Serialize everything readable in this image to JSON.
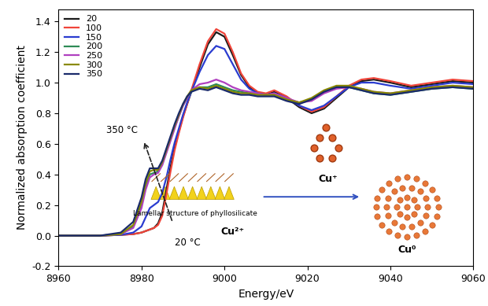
{
  "chart_data": {
    "type": "line",
    "x_label": "Energy/eV",
    "y_label": "Normalized absorption coefficient",
    "x": [
      8960,
      8970,
      8975,
      8978,
      8980,
      8981,
      8982,
      8983,
      8984,
      8985,
      8986,
      8987,
      8988,
      8989,
      8990,
      8991,
      8992,
      8994,
      8996,
      8998,
      9000,
      9002,
      9004,
      9006,
      9008,
      9010,
      9012,
      9015,
      9018,
      9021,
      9024,
      9027,
      9030,
      9033,
      9036,
      9040,
      9045,
      9050,
      9055,
      9060
    ],
    "series": [
      {
        "name": "20",
        "color": "#1a1a1a",
        "values": [
          0,
          0,
          0.005,
          0.01,
          0.02,
          0.03,
          0.04,
          0.05,
          0.08,
          0.15,
          0.3,
          0.45,
          0.58,
          0.68,
          0.78,
          0.86,
          0.94,
          1.1,
          1.25,
          1.33,
          1.3,
          1.18,
          1.05,
          0.97,
          0.93,
          0.92,
          0.94,
          0.9,
          0.84,
          0.8,
          0.83,
          0.9,
          0.97,
          1.01,
          1.02,
          1.0,
          0.97,
          0.99,
          1.01,
          1.0
        ]
      },
      {
        "name": "100",
        "color": "#f0453a",
        "values": [
          0,
          0,
          0.005,
          0.01,
          0.02,
          0.03,
          0.04,
          0.05,
          0.07,
          0.13,
          0.27,
          0.42,
          0.56,
          0.67,
          0.77,
          0.86,
          0.95,
          1.12,
          1.27,
          1.35,
          1.32,
          1.2,
          1.06,
          0.98,
          0.94,
          0.93,
          0.95,
          0.91,
          0.85,
          0.81,
          0.84,
          0.91,
          0.98,
          1.02,
          1.03,
          1.01,
          0.98,
          1.0,
          1.02,
          1.01
        ]
      },
      {
        "name": "150",
        "color": "#2a3cd0",
        "values": [
          0,
          0,
          0.005,
          0.02,
          0.06,
          0.12,
          0.18,
          0.2,
          0.22,
          0.28,
          0.38,
          0.5,
          0.61,
          0.7,
          0.79,
          0.87,
          0.94,
          1.07,
          1.18,
          1.24,
          1.22,
          1.12,
          1.02,
          0.96,
          0.93,
          0.92,
          0.93,
          0.9,
          0.85,
          0.82,
          0.85,
          0.91,
          0.97,
          1.0,
          1.0,
          0.98,
          0.96,
          0.98,
          1.0,
          0.99
        ]
      },
      {
        "name": "200",
        "color": "#2e8b57",
        "values": [
          0,
          0,
          0.01,
          0.06,
          0.2,
          0.32,
          0.4,
          0.41,
          0.42,
          0.47,
          0.55,
          0.63,
          0.71,
          0.78,
          0.85,
          0.9,
          0.94,
          0.97,
          0.97,
          0.99,
          0.97,
          0.95,
          0.94,
          0.93,
          0.92,
          0.92,
          0.92,
          0.89,
          0.87,
          0.89,
          0.94,
          0.97,
          0.97,
          0.95,
          0.93,
          0.92,
          0.94,
          0.96,
          0.97,
          0.96
        ]
      },
      {
        "name": "250",
        "color": "#b040c0",
        "values": [
          0,
          0,
          0.01,
          0.05,
          0.18,
          0.3,
          0.38,
          0.4,
          0.41,
          0.46,
          0.54,
          0.62,
          0.7,
          0.78,
          0.85,
          0.9,
          0.95,
          0.99,
          1.0,
          1.02,
          1.0,
          0.97,
          0.95,
          0.94,
          0.93,
          0.92,
          0.93,
          0.9,
          0.87,
          0.88,
          0.93,
          0.96,
          0.97,
          0.96,
          0.94,
          0.93,
          0.95,
          0.97,
          0.98,
          0.97
        ]
      },
      {
        "name": "300",
        "color": "#8a8a00",
        "values": [
          0,
          0,
          0.01,
          0.07,
          0.22,
          0.34,
          0.42,
          0.43,
          0.43,
          0.48,
          0.56,
          0.64,
          0.72,
          0.79,
          0.86,
          0.91,
          0.95,
          0.97,
          0.96,
          0.98,
          0.96,
          0.94,
          0.93,
          0.93,
          0.92,
          0.92,
          0.92,
          0.89,
          0.87,
          0.9,
          0.95,
          0.98,
          0.98,
          0.96,
          0.94,
          0.93,
          0.95,
          0.97,
          0.98,
          0.97
        ]
      },
      {
        "name": "350",
        "color": "#1a2a6a",
        "values": [
          0,
          0,
          0.02,
          0.09,
          0.25,
          0.37,
          0.44,
          0.44,
          0.44,
          0.49,
          0.57,
          0.65,
          0.73,
          0.8,
          0.86,
          0.91,
          0.94,
          0.96,
          0.95,
          0.97,
          0.95,
          0.93,
          0.92,
          0.92,
          0.91,
          0.91,
          0.91,
          0.88,
          0.86,
          0.89,
          0.94,
          0.97,
          0.97,
          0.95,
          0.93,
          0.92,
          0.94,
          0.96,
          0.97,
          0.96
        ]
      }
    ],
    "xlim": [
      8960,
      9060
    ],
    "xticks": [
      8960,
      8980,
      9000,
      9020,
      9040,
      9060
    ],
    "ylim": [
      -0.2,
      1.48
    ],
    "yticks": [
      {
        "value": -0.2,
        "label": "-0.2"
      },
      {
        "value": 0.0,
        "label": "0.0"
      },
      {
        "value": 0.2,
        "label": "0.2"
      },
      {
        "value": 0.4,
        "label": "0.4"
      },
      {
        "value": 0.6,
        "label": "0.6"
      },
      {
        "value": 0.8,
        "label": "0.8"
      },
      {
        "value": 1.0,
        "label": "1.0"
      },
      {
        "value": 1.2,
        "label": "1.2"
      },
      {
        "value": 1.4,
        "label": "1.4"
      }
    ],
    "legend": "upper left",
    "annotations": {
      "high_temp": "350 °C",
      "low_temp": "20 °C",
      "structure": "Lamellar structure of phyllosilicate",
      "cu2": "Cu²⁺",
      "cu1": "Cu⁺",
      "cu0": "Cu⁰"
    }
  }
}
